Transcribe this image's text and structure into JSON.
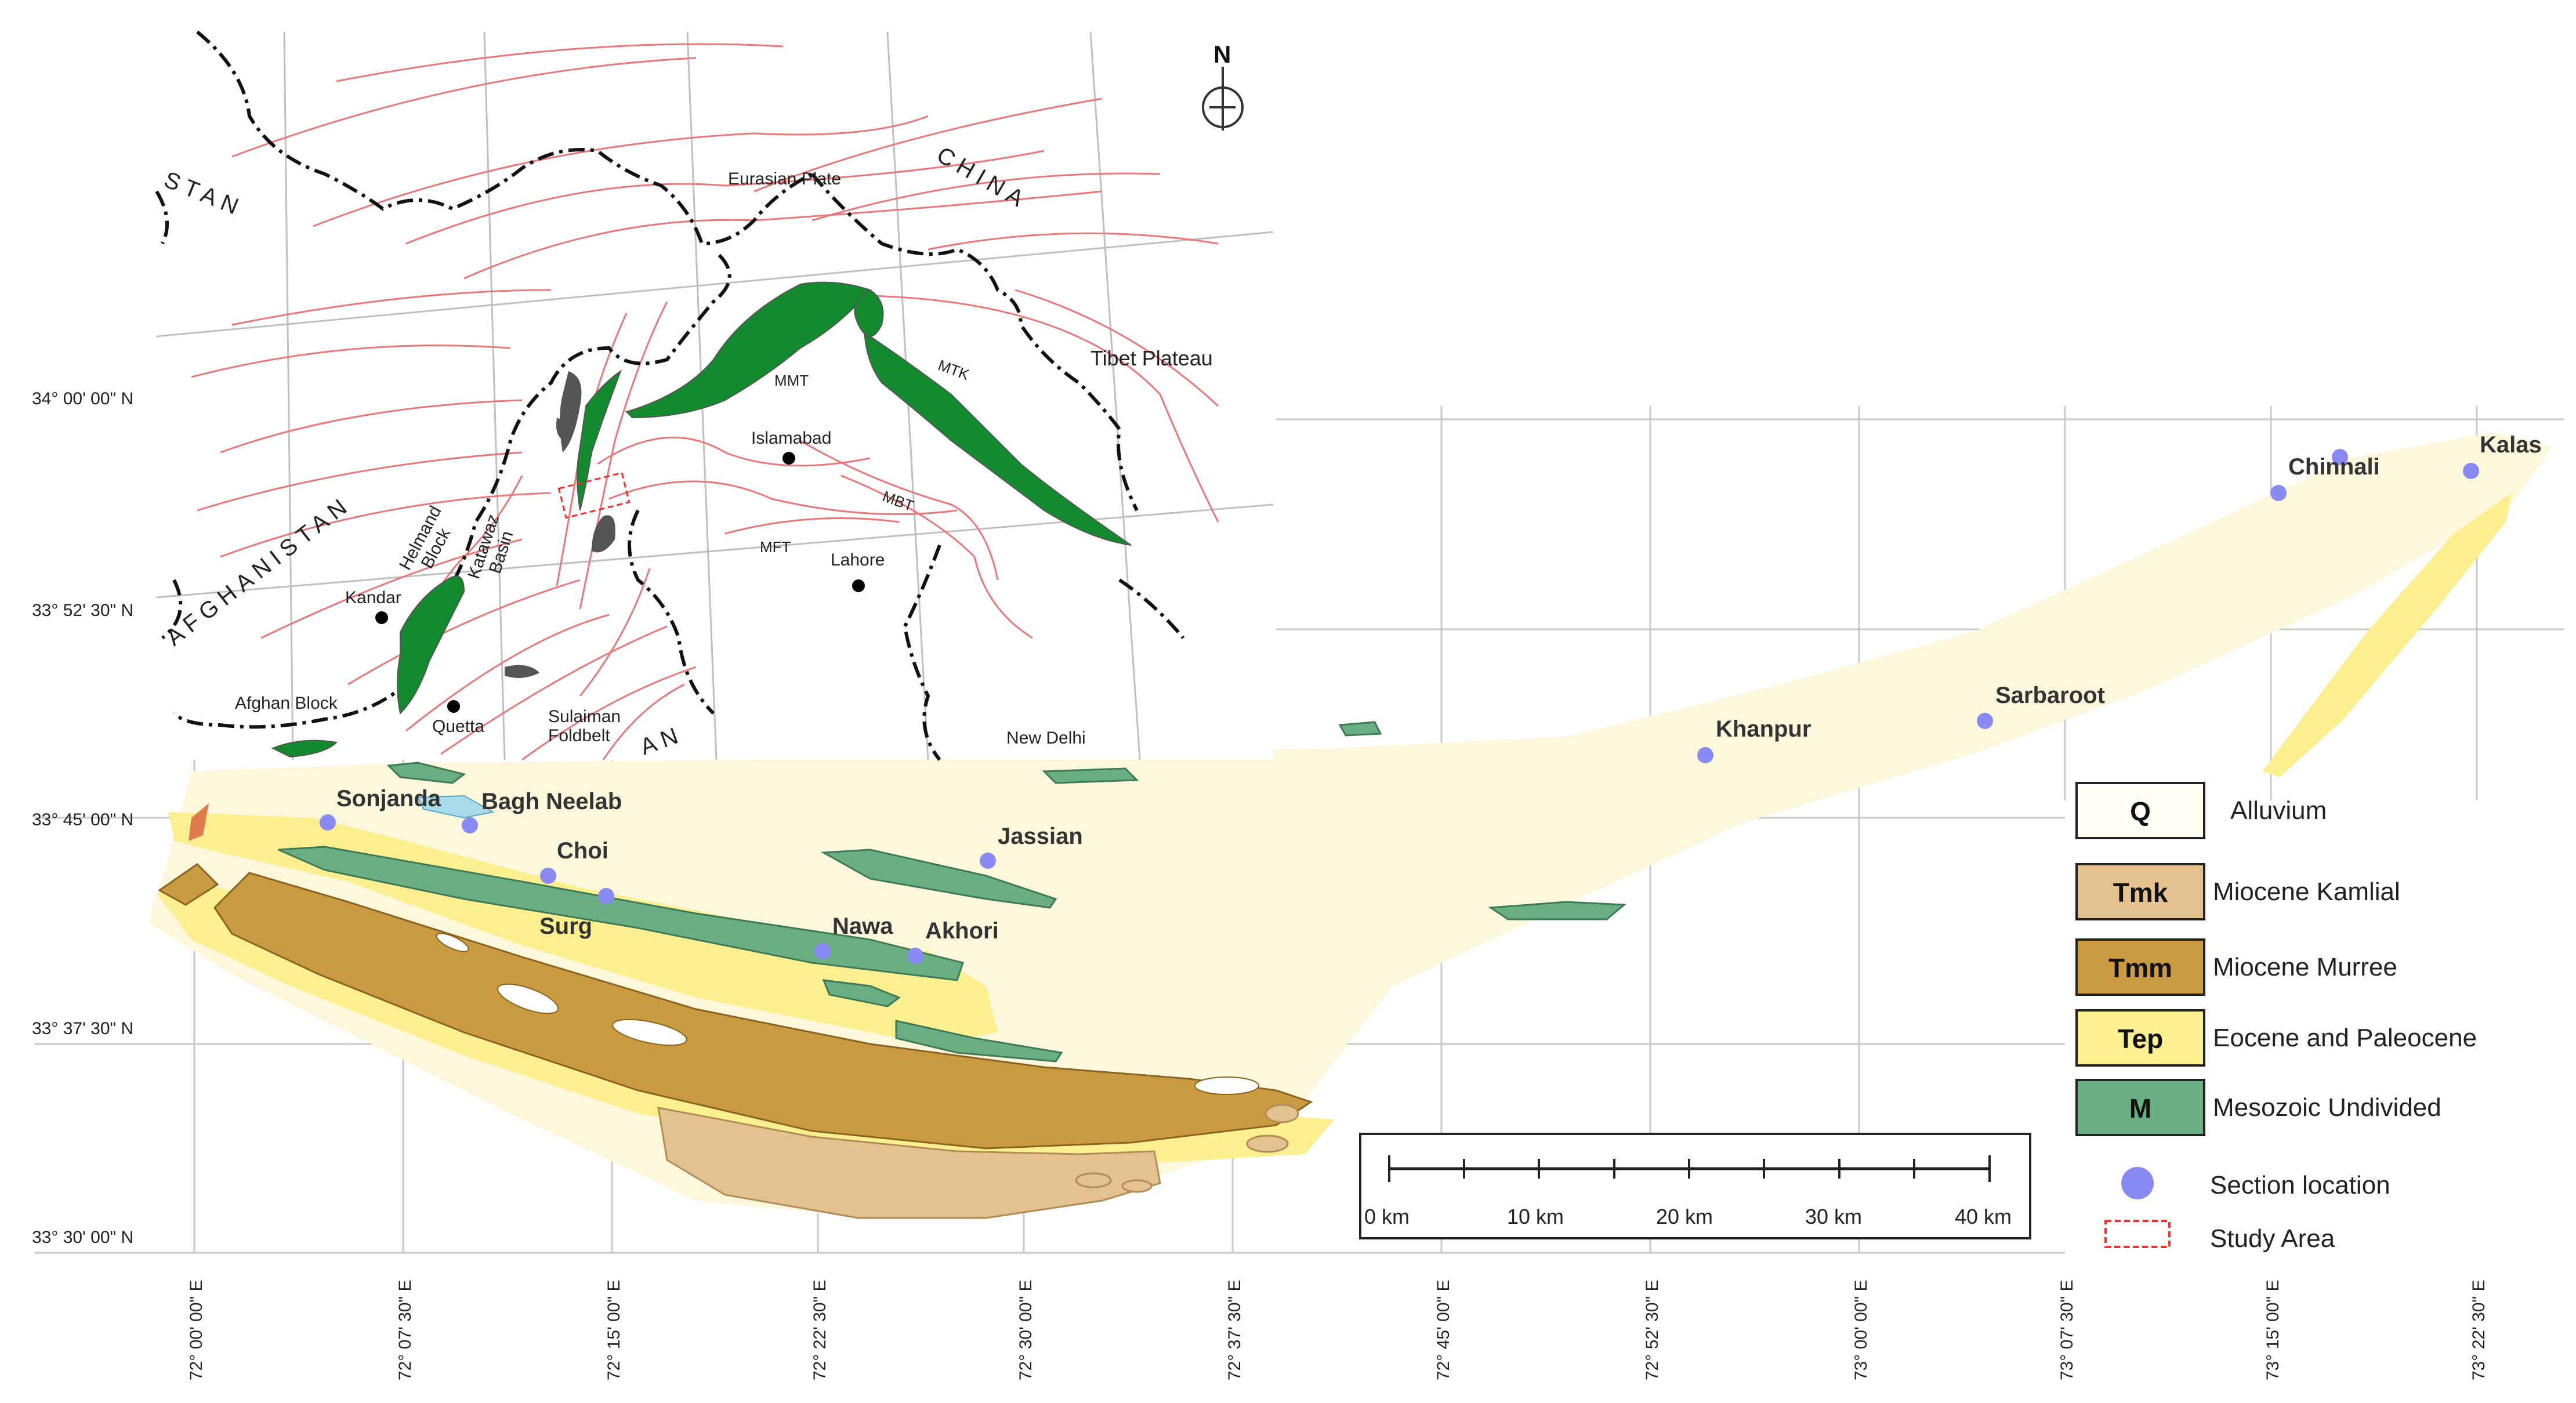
{
  "lat_labels": [
    "34° 00' 00\" N",
    "33° 52' 30\" N",
    "33° 45' 00\" N",
    "33° 37' 30\" N",
    "33° 30' 00\" N"
  ],
  "lon_labels": [
    "72° 00' 00\" E",
    "72° 07' 30\" E",
    "72° 15' 00\" E",
    "72° 22' 30\" E",
    "72° 30' 00\" E",
    "72° 37' 30\" E",
    "72° 45' 00\" E",
    "72° 52' 30\" E",
    "73° 00' 00\" E",
    "73° 07' 30\" E",
    "73° 15' 00\" E",
    "73° 22' 30\" E"
  ],
  "inset": {
    "north_arrow": "N",
    "countries": {
      "afghanistan": "AFGHANISTAN",
      "stan": "STAN",
      "china": "CHINA",
      "an": "AN"
    },
    "labels": {
      "eurasian_plate": "Eurasian Plate",
      "tibet_plateau": "Tibet Plateau",
      "mmt": "MMT",
      "mtk": "MTK",
      "islamabad": "Islamabad",
      "mbt": "MBT",
      "mft": "MFT",
      "lahore": "Lahore",
      "helmand_block": [
        "Helmand",
        "Block"
      ],
      "katawaz_basin": [
        "Katawaz",
        "Basin"
      ],
      "kandar": "Kandar",
      "afghan_block": "Afghan Block",
      "quetta": "Quetta",
      "sulaiman_foldbelt": [
        "Sulaiman",
        "Foldbelt"
      ],
      "new_delhi": "New Delhi"
    }
  },
  "sections": [
    {
      "id": "sonjanda",
      "label": "Sonjanda"
    },
    {
      "id": "bagh-neelab",
      "label": "Bagh Neelab"
    },
    {
      "id": "choi",
      "label": "Choi"
    },
    {
      "id": "surg",
      "label": "Surg"
    },
    {
      "id": "nawa",
      "label": "Nawa"
    },
    {
      "id": "akhori",
      "label": "Akhori"
    },
    {
      "id": "jassian",
      "label": "Jassian"
    },
    {
      "id": "khanpur",
      "label": "Khanpur"
    },
    {
      "id": "sarbaroot",
      "label": "Sarbaroot"
    },
    {
      "id": "chinnali",
      "label": "Chinnali"
    },
    {
      "id": "kalas",
      "label": "Kalas"
    }
  ],
  "scale_bar": {
    "labels": [
      "0 km",
      "10 km",
      "20 km",
      "30 km",
      "40 km"
    ]
  },
  "legend": [
    {
      "code": "Q",
      "label": "Alluvium",
      "color": "#fffdf6"
    },
    {
      "code": "Tmk",
      "label": "Miocene Kamlial",
      "color": "#e3c28f"
    },
    {
      "code": "Tmm",
      "label": "Miocene Murree",
      "color": "#c99a3f"
    },
    {
      "code": "Tep",
      "label": "Eocene and Paleocene",
      "color": "#fbef8f"
    },
    {
      "code": "M",
      "label": "Mesozoic Undivided",
      "color": "#6aae84"
    },
    {
      "code": "",
      "label": "Section location",
      "color": "#8a8af5"
    },
    {
      "code": "",
      "label": "Study Area",
      "color": "#ff3333"
    }
  ],
  "colors": {
    "alluvium_fill": "#fdf8dc",
    "inset_green": "#138a2e",
    "fault_red": "#e8787a",
    "section_dot": "#8a8af5"
  }
}
